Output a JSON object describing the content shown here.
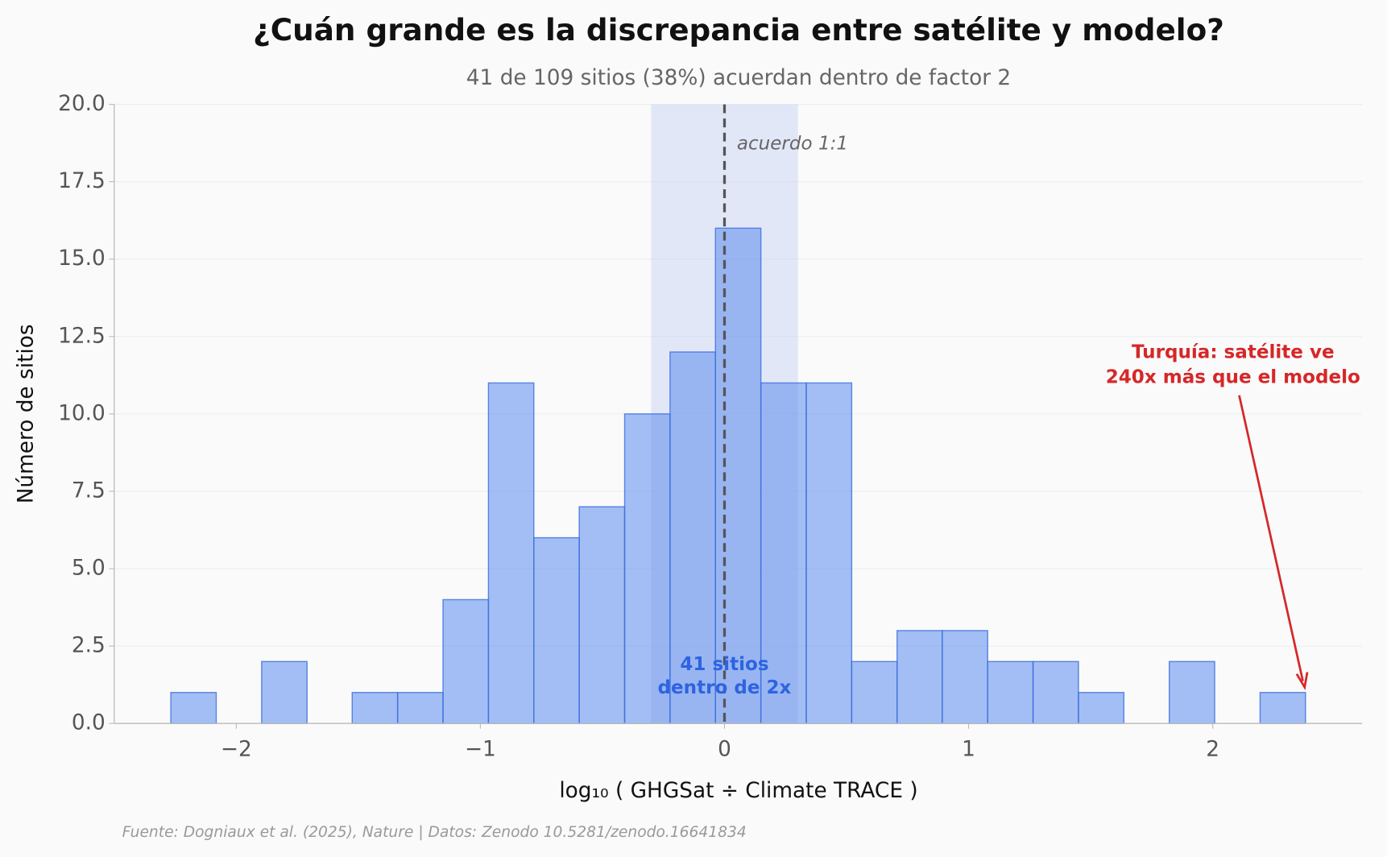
{
  "chart_data": {
    "type": "histogram",
    "title": "¿Cuán grande es la discrepancia entre satélite y modelo?",
    "subtitle": "41 de 109 sitios (38%) acuerdan dentro de factor 2",
    "x_label": "log₁₀ ( GHGSat ÷ Climate TRACE )",
    "y_label": "Número de sitios",
    "source": "Fuente: Dogniaux et al. (2025), Nature | Datos: Zenodo 10.5281/zenodo.16641834",
    "bins": [
      -2.268,
      -2.082,
      -1.896,
      -1.71,
      -1.525,
      -1.339,
      -1.153,
      -0.967,
      -0.781,
      -0.595,
      -0.409,
      -0.223,
      -0.037,
      0.149,
      0.335,
      0.521,
      0.707,
      0.892,
      1.078,
      1.264,
      1.45,
      1.636,
      1.822,
      2.008,
      2.194,
      2.38
    ],
    "values": [
      1,
      0,
      2,
      0,
      1,
      1,
      4,
      11,
      6,
      7,
      10,
      12,
      16,
      11,
      11,
      2,
      3,
      3,
      2,
      2,
      1,
      0,
      2,
      0,
      1
    ],
    "color": "#5b8def",
    "edge_color": "#3b6ee0",
    "shaded_band": [
      -0.301,
      0.301
    ],
    "band_color": "#c5d0f3",
    "reference_line": 0,
    "reference_label": "acuerdo 1:1",
    "band_label": [
      "41 sitios",
      "dentro de 2x"
    ],
    "callout": [
      "Turquía: satélite ve",
      "240x más que el modelo"
    ],
    "callout_color": "#d62728",
    "xlim": [
      -2.5,
      2.612
    ],
    "ylim": [
      0,
      20
    ],
    "xticks": [
      {
        "value": -2,
        "label": "−2"
      },
      {
        "value": -1,
        "label": "−1"
      },
      0,
      1,
      2
    ],
    "yticks": [
      {
        "value": 0,
        "label": "0.0"
      },
      2.5,
      {
        "value": 5,
        "label": "5.0"
      },
      7.5,
      {
        "value": 10,
        "label": "10.0"
      },
      12.5,
      {
        "value": 15,
        "label": "15.0"
      },
      17.5,
      {
        "value": 20,
        "label": "20.0"
      }
    ],
    "grid": true
  }
}
